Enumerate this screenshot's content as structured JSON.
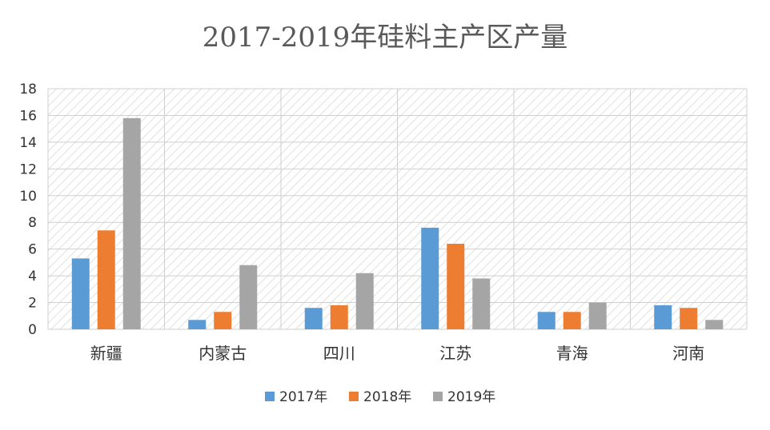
{
  "chart_data": {
    "type": "bar",
    "title": "2017-2019年硅料主产区产量",
    "xlabel": "",
    "ylabel": "",
    "ylim": [
      0,
      18
    ],
    "yticks": [
      0,
      2,
      4,
      6,
      8,
      10,
      12,
      14,
      16,
      18
    ],
    "categories": [
      "新疆",
      "内蒙古",
      "四川",
      "江苏",
      "青海",
      "河南"
    ],
    "series": [
      {
        "name": "2017年",
        "color": "#5B9BD5",
        "values": [
          5.3,
          0.7,
          1.6,
          7.6,
          1.3,
          1.8
        ]
      },
      {
        "name": "2018年",
        "color": "#ED7D31",
        "values": [
          7.4,
          1.3,
          1.8,
          6.4,
          1.3,
          1.6
        ]
      },
      {
        "name": "2019年",
        "color": "#A5A5A5",
        "values": [
          15.8,
          4.8,
          4.2,
          3.8,
          2.0,
          0.7
        ]
      }
    ],
    "grid": true,
    "legend_position": "bottom",
    "plot_background": "diagonal-hatch"
  }
}
